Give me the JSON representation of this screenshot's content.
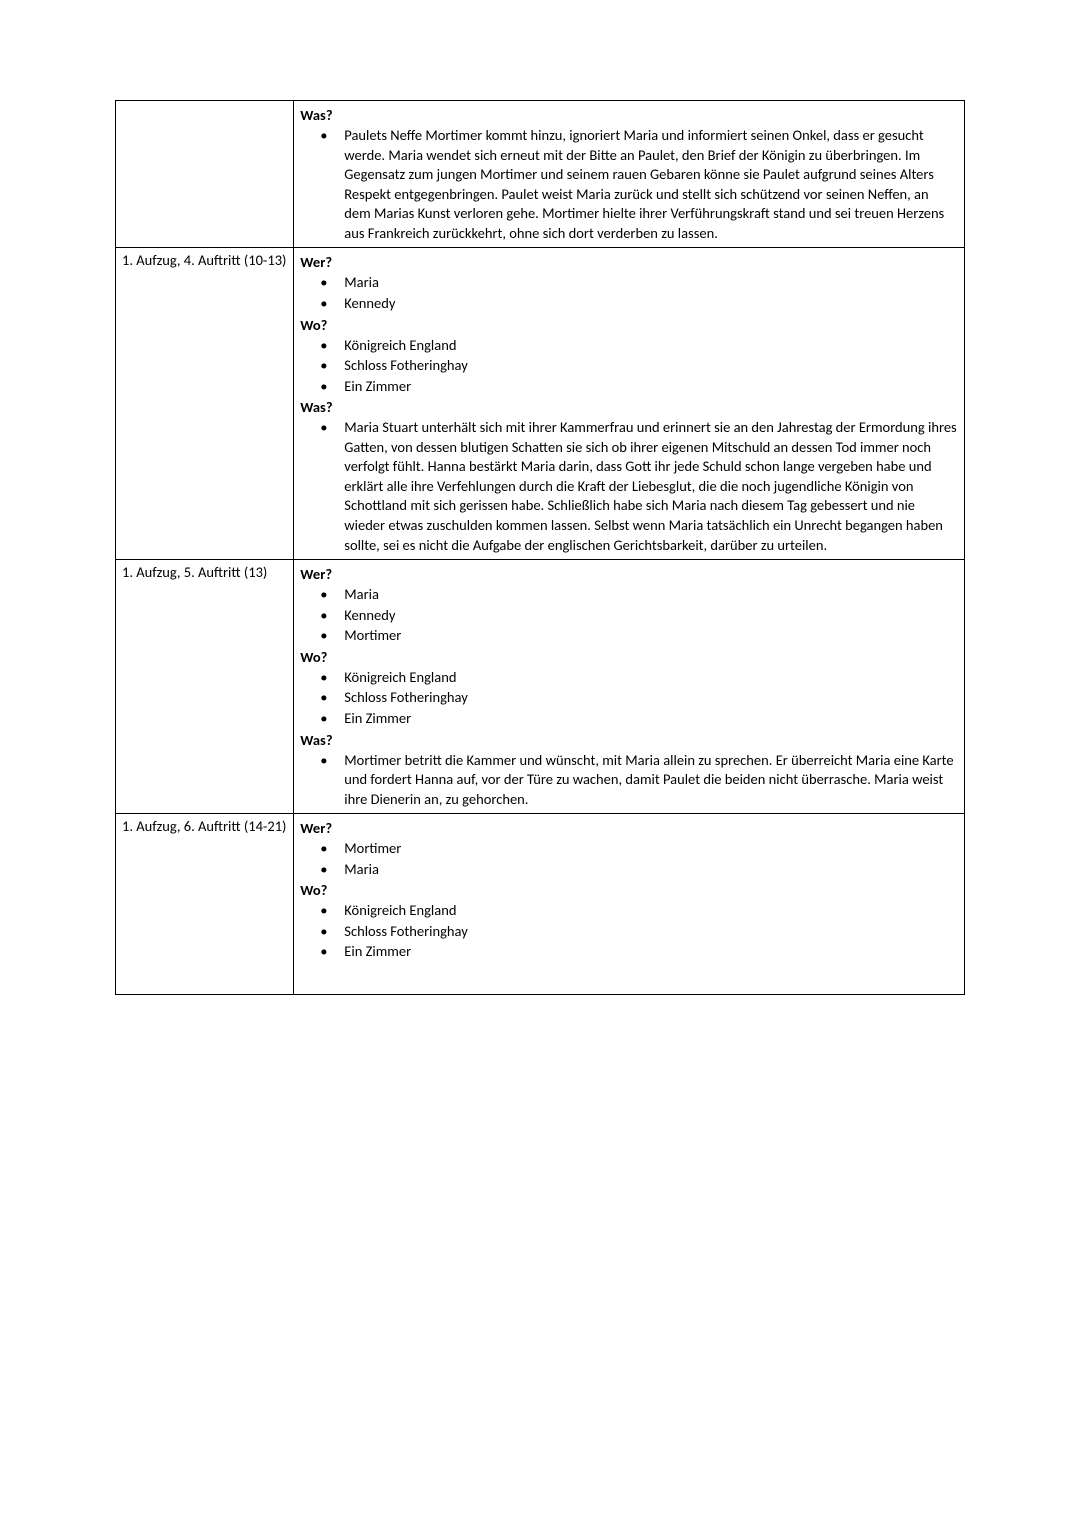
{
  "labels": {
    "wer": "Wer?",
    "wo": "Wo?",
    "was": "Was?"
  },
  "rows": [
    {
      "scene": "",
      "sections": [
        {
          "label": "Was?",
          "items": [
            "Paulets Neffe Mortimer kommt hinzu, ignoriert Maria und informiert seinen Onkel, dass er gesucht werde. Maria wendet sich erneut mit der Bitte an Paulet, den Brief der Königin zu überbringen. Im Gegensatz zum jungen Mortimer und seinem rauen Gebaren könne sie Paulet aufgrund seines Alters Respekt entgegenbringen. Paulet weist Maria zurück und stellt sich schützend vor seinen Neffen, an dem Marias Kunst verloren gehe. Mortimer hielte ihrer Verführungskraft stand und sei treuen Herzens aus Frankreich zurückkehrt, ohne sich dort verderben zu lassen."
          ]
        }
      ]
    },
    {
      "scene": "1. Aufzug, 4. Auftritt (10-13)",
      "sections": [
        {
          "label": "Wer?",
          "items": [
            "Maria",
            "Kennedy"
          ]
        },
        {
          "label": "Wo?",
          "items": [
            "Königreich England",
            "Schloss Fotheringhay",
            "Ein Zimmer"
          ]
        },
        {
          "label": "Was?",
          "items": [
            "Maria Stuart unterhält sich mit ihrer Kammerfrau und erinnert sie an den Jahrestag der Ermordung ihres Gatten, von dessen blutigen Schatten sie sich ob ihrer eigenen Mitschuld an dessen Tod immer noch verfolgt fühlt. Hanna bestärkt Maria darin, dass Gott ihr jede Schuld schon lange vergeben habe und erklärt alle ihre Verfehlungen durch die Kraft der Liebesglut, die die noch jugendliche Königin von Schottland mit sich gerissen habe. Schließlich habe sich Maria nach diesem Tag gebessert und nie wieder etwas zuschulden kommen lassen. Selbst wenn Maria tatsächlich ein Unrecht begangen haben sollte, sei es nicht die Aufgabe der englischen Gerichtsbarkeit, darüber zu urteilen."
          ]
        }
      ]
    },
    {
      "scene": "1. Aufzug, 5. Auftritt (13)",
      "sections": [
        {
          "label": "Wer?",
          "items": [
            "Maria",
            "Kennedy",
            "Mortimer"
          ]
        },
        {
          "label": "Wo?",
          "items": [
            "Königreich England",
            "Schloss Fotheringhay",
            "Ein Zimmer"
          ]
        },
        {
          "label": "Was?",
          "items": [
            "Mortimer betritt die Kammer und wünscht, mit Maria allein zu sprechen. Er überreicht Maria eine Karte und fordert Hanna auf, vor der Türe zu wachen, damit Paulet die beiden nicht überrasche. Maria weist ihre Dienerin an, zu gehorchen."
          ]
        }
      ]
    },
    {
      "scene": "1. Aufzug, 6. Auftritt (14-21)",
      "sections": [
        {
          "label": "Wer?",
          "items": [
            "Mortimer",
            "Maria"
          ]
        },
        {
          "label": "Wo?",
          "items": [
            "Königreich England",
            "Schloss Fotheringhay",
            "Ein Zimmer"
          ]
        }
      ],
      "trailing_space": true
    }
  ]
}
